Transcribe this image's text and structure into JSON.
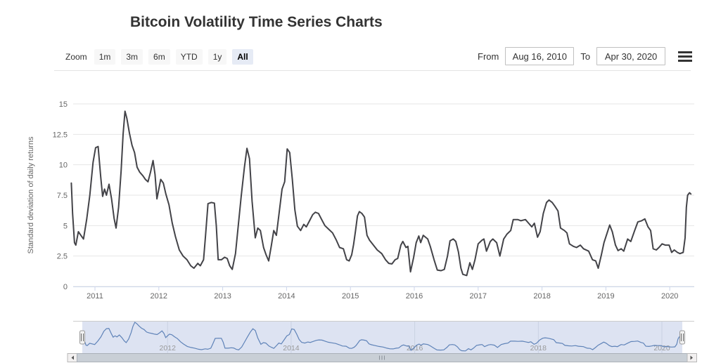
{
  "title": "Bitcoin Volatility Time Series Charts",
  "range_selector": {
    "zoom_label": "Zoom",
    "buttons": [
      {
        "label": "1m",
        "selected": false
      },
      {
        "label": "3m",
        "selected": false
      },
      {
        "label": "6m",
        "selected": false
      },
      {
        "label": "YTD",
        "selected": false
      },
      {
        "label": "1y",
        "selected": false
      },
      {
        "label": "All",
        "selected": true
      }
    ],
    "from_label": "From",
    "from_value": "Aug 16, 2010",
    "to_label": "To",
    "to_value": "Apr 30, 2020"
  },
  "icons": {
    "menu": "hamburger-menu-icon",
    "scrollbar_left": "left-arrow-icon",
    "scrollbar_right": "right-arrow-icon",
    "navigator_handle": "drag-handle-icon"
  },
  "colors": {
    "title_text": "#333333",
    "series": "#434348",
    "grid": "#e6e6e6",
    "axis_line": "#ccd6eb",
    "axis_label": "#666666",
    "selected_button_bg": "#e6ebf5",
    "button_bg": "#f7f7f7",
    "navigator_line": "#5f83b8",
    "navigator_mask": "#667fc2",
    "navigator_label": "#999999",
    "scrollbar_track": "#c9cfd6",
    "scrollbar_button": "#f2f0f0"
  },
  "chart_data": {
    "type": "line",
    "title": "Bitcoin Volatility Time Series Charts",
    "xlabel": "",
    "ylabel": "Standard deviation of daily returns",
    "ylim": [
      0,
      15
    ],
    "yticks": [
      0,
      2.5,
      5,
      7.5,
      10,
      12.5,
      15
    ],
    "xlim": [
      2010.62,
      2020.33
    ],
    "xticks": [
      2011,
      2012,
      2013,
      2014,
      2015,
      2016,
      2017,
      2018,
      2019,
      2020
    ],
    "grid": true,
    "legend": false,
    "series": [
      {
        "name": "Standard deviation of daily returns",
        "points": [
          [
            2010.63,
            8.5
          ],
          [
            2010.65,
            6.0
          ],
          [
            2010.68,
            3.6
          ],
          [
            2010.7,
            3.4
          ],
          [
            2010.74,
            4.5
          ],
          [
            2010.78,
            4.2
          ],
          [
            2010.82,
            3.9
          ],
          [
            2010.87,
            5.5
          ],
          [
            2010.92,
            7.5
          ],
          [
            2010.97,
            10.2
          ],
          [
            2011.01,
            11.4
          ],
          [
            2011.05,
            11.5
          ],
          [
            2011.09,
            9.0
          ],
          [
            2011.12,
            7.4
          ],
          [
            2011.15,
            8.0
          ],
          [
            2011.18,
            7.5
          ],
          [
            2011.22,
            8.4
          ],
          [
            2011.26,
            7.2
          ],
          [
            2011.3,
            5.6
          ],
          [
            2011.33,
            4.8
          ],
          [
            2011.37,
            6.5
          ],
          [
            2011.41,
            9.5
          ],
          [
            2011.44,
            12.5
          ],
          [
            2011.47,
            14.4
          ],
          [
            2011.5,
            13.8
          ],
          [
            2011.54,
            12.6
          ],
          [
            2011.58,
            11.6
          ],
          [
            2011.62,
            11.0
          ],
          [
            2011.66,
            9.8
          ],
          [
            2011.7,
            9.4
          ],
          [
            2011.75,
            9.1
          ],
          [
            2011.79,
            8.8
          ],
          [
            2011.83,
            8.6
          ],
          [
            2011.87,
            9.4
          ],
          [
            2011.91,
            10.35
          ],
          [
            2011.94,
            9.2
          ],
          [
            2011.97,
            7.2
          ],
          [
            2012.0,
            8.0
          ],
          [
            2012.03,
            8.8
          ],
          [
            2012.07,
            8.5
          ],
          [
            2012.11,
            7.6
          ],
          [
            2012.16,
            6.7
          ],
          [
            2012.21,
            5.2
          ],
          [
            2012.26,
            4.1
          ],
          [
            2012.32,
            3.0
          ],
          [
            2012.38,
            2.5
          ],
          [
            2012.44,
            2.2
          ],
          [
            2012.5,
            1.7
          ],
          [
            2012.55,
            1.5
          ],
          [
            2012.61,
            1.9
          ],
          [
            2012.65,
            1.7
          ],
          [
            2012.7,
            2.2
          ],
          [
            2012.73,
            4.1
          ],
          [
            2012.77,
            6.8
          ],
          [
            2012.82,
            6.9
          ],
          [
            2012.87,
            6.85
          ],
          [
            2012.9,
            5.0
          ],
          [
            2012.93,
            2.2
          ],
          [
            2012.98,
            2.2
          ],
          [
            2013.03,
            2.4
          ],
          [
            2013.07,
            2.3
          ],
          [
            2013.11,
            1.7
          ],
          [
            2013.15,
            1.4
          ],
          [
            2013.2,
            2.7
          ],
          [
            2013.24,
            4.8
          ],
          [
            2013.29,
            7.4
          ],
          [
            2013.34,
            9.8
          ],
          [
            2013.38,
            11.35
          ],
          [
            2013.42,
            10.5
          ],
          [
            2013.46,
            7.0
          ],
          [
            2013.51,
            4.0
          ],
          [
            2013.55,
            4.8
          ],
          [
            2013.59,
            4.6
          ],
          [
            2013.64,
            3.2
          ],
          [
            2013.68,
            2.6
          ],
          [
            2013.72,
            2.1
          ],
          [
            2013.76,
            3.3
          ],
          [
            2013.8,
            4.6
          ],
          [
            2013.84,
            4.2
          ],
          [
            2013.89,
            6.3
          ],
          [
            2013.93,
            8.0
          ],
          [
            2013.97,
            8.6
          ],
          [
            2014.01,
            11.3
          ],
          [
            2014.05,
            11.0
          ],
          [
            2014.09,
            8.8
          ],
          [
            2014.13,
            6.3
          ],
          [
            2014.17,
            4.95
          ],
          [
            2014.22,
            4.6
          ],
          [
            2014.27,
            5.1
          ],
          [
            2014.31,
            4.9
          ],
          [
            2014.36,
            5.4
          ],
          [
            2014.41,
            5.9
          ],
          [
            2014.45,
            6.1
          ],
          [
            2014.5,
            6.0
          ],
          [
            2014.55,
            5.5
          ],
          [
            2014.6,
            5.0
          ],
          [
            2014.66,
            4.7
          ],
          [
            2014.72,
            4.4
          ],
          [
            2014.78,
            3.8
          ],
          [
            2014.83,
            3.2
          ],
          [
            2014.89,
            3.1
          ],
          [
            2014.94,
            2.2
          ],
          [
            2014.98,
            2.1
          ],
          [
            2015.02,
            2.6
          ],
          [
            2015.05,
            3.45
          ],
          [
            2015.08,
            4.6
          ],
          [
            2015.11,
            5.8
          ],
          [
            2015.14,
            6.15
          ],
          [
            2015.18,
            6.0
          ],
          [
            2015.22,
            5.7
          ],
          [
            2015.26,
            4.2
          ],
          [
            2015.3,
            3.8
          ],
          [
            2015.36,
            3.4
          ],
          [
            2015.42,
            3.0
          ],
          [
            2015.49,
            2.7
          ],
          [
            2015.55,
            2.2
          ],
          [
            2015.6,
            1.9
          ],
          [
            2015.65,
            1.85
          ],
          [
            2015.7,
            2.2
          ],
          [
            2015.74,
            2.3
          ],
          [
            2015.79,
            3.4
          ],
          [
            2015.82,
            3.7
          ],
          [
            2015.87,
            3.2
          ],
          [
            2015.9,
            3.3
          ],
          [
            2015.94,
            1.2
          ],
          [
            2015.99,
            2.4
          ],
          [
            2016.03,
            3.6
          ],
          [
            2016.07,
            4.15
          ],
          [
            2016.1,
            3.6
          ],
          [
            2016.14,
            4.2
          ],
          [
            2016.21,
            3.9
          ],
          [
            2016.25,
            3.3
          ],
          [
            2016.31,
            2.2
          ],
          [
            2016.36,
            1.35
          ],
          [
            2016.42,
            1.3
          ],
          [
            2016.47,
            1.4
          ],
          [
            2016.52,
            2.5
          ],
          [
            2016.56,
            3.75
          ],
          [
            2016.61,
            3.9
          ],
          [
            2016.65,
            3.7
          ],
          [
            2016.69,
            2.85
          ],
          [
            2016.73,
            1.5
          ],
          [
            2016.76,
            1.0
          ],
          [
            2016.82,
            0.9
          ],
          [
            2016.87,
            1.95
          ],
          [
            2016.91,
            1.4
          ],
          [
            2016.95,
            2.2
          ],
          [
            2017.0,
            3.5
          ],
          [
            2017.06,
            3.8
          ],
          [
            2017.09,
            3.9
          ],
          [
            2017.13,
            2.9
          ],
          [
            2017.19,
            3.7
          ],
          [
            2017.23,
            3.9
          ],
          [
            2017.29,
            3.6
          ],
          [
            2017.34,
            2.5
          ],
          [
            2017.4,
            3.9
          ],
          [
            2017.45,
            4.3
          ],
          [
            2017.51,
            4.6
          ],
          [
            2017.55,
            5.5
          ],
          [
            2017.62,
            5.5
          ],
          [
            2017.67,
            5.4
          ],
          [
            2017.74,
            5.5
          ],
          [
            2017.79,
            5.2
          ],
          [
            2017.84,
            4.9
          ],
          [
            2017.88,
            5.2
          ],
          [
            2017.93,
            4.05
          ],
          [
            2017.97,
            4.5
          ],
          [
            2018.02,
            6.0
          ],
          [
            2018.07,
            6.9
          ],
          [
            2018.11,
            7.1
          ],
          [
            2018.16,
            6.9
          ],
          [
            2018.2,
            6.6
          ],
          [
            2018.25,
            6.2
          ],
          [
            2018.29,
            4.8
          ],
          [
            2018.35,
            4.6
          ],
          [
            2018.39,
            4.4
          ],
          [
            2018.43,
            3.5
          ],
          [
            2018.49,
            3.3
          ],
          [
            2018.54,
            3.2
          ],
          [
            2018.6,
            3.4
          ],
          [
            2018.65,
            3.1
          ],
          [
            2018.73,
            2.9
          ],
          [
            2018.79,
            2.2
          ],
          [
            2018.84,
            2.1
          ],
          [
            2018.88,
            1.5
          ],
          [
            2018.93,
            2.6
          ],
          [
            2018.97,
            3.6
          ],
          [
            2019.02,
            4.4
          ],
          [
            2019.06,
            5.05
          ],
          [
            2019.1,
            4.5
          ],
          [
            2019.15,
            3.4
          ],
          [
            2019.19,
            2.95
          ],
          [
            2019.24,
            3.1
          ],
          [
            2019.28,
            2.9
          ],
          [
            2019.34,
            3.9
          ],
          [
            2019.39,
            3.7
          ],
          [
            2019.45,
            4.6
          ],
          [
            2019.5,
            5.3
          ],
          [
            2019.56,
            5.4
          ],
          [
            2019.61,
            5.55
          ],
          [
            2019.66,
            4.9
          ],
          [
            2019.7,
            4.6
          ],
          [
            2019.74,
            3.1
          ],
          [
            2019.79,
            3.0
          ],
          [
            2019.83,
            3.2
          ],
          [
            2019.88,
            3.5
          ],
          [
            2019.93,
            3.4
          ],
          [
            2019.99,
            3.4
          ],
          [
            2020.03,
            2.8
          ],
          [
            2020.07,
            3.0
          ],
          [
            2020.12,
            2.8
          ],
          [
            2020.16,
            2.7
          ],
          [
            2020.21,
            2.8
          ],
          [
            2020.24,
            4.0
          ],
          [
            2020.26,
            6.5
          ],
          [
            2020.28,
            7.5
          ],
          [
            2020.31,
            7.7
          ],
          [
            2020.33,
            7.6
          ]
        ]
      }
    ],
    "navigator": {
      "xticks": [
        2012,
        2014,
        2016,
        2018,
        2020
      ],
      "selected_range": [
        2010.62,
        2020.33
      ]
    }
  }
}
